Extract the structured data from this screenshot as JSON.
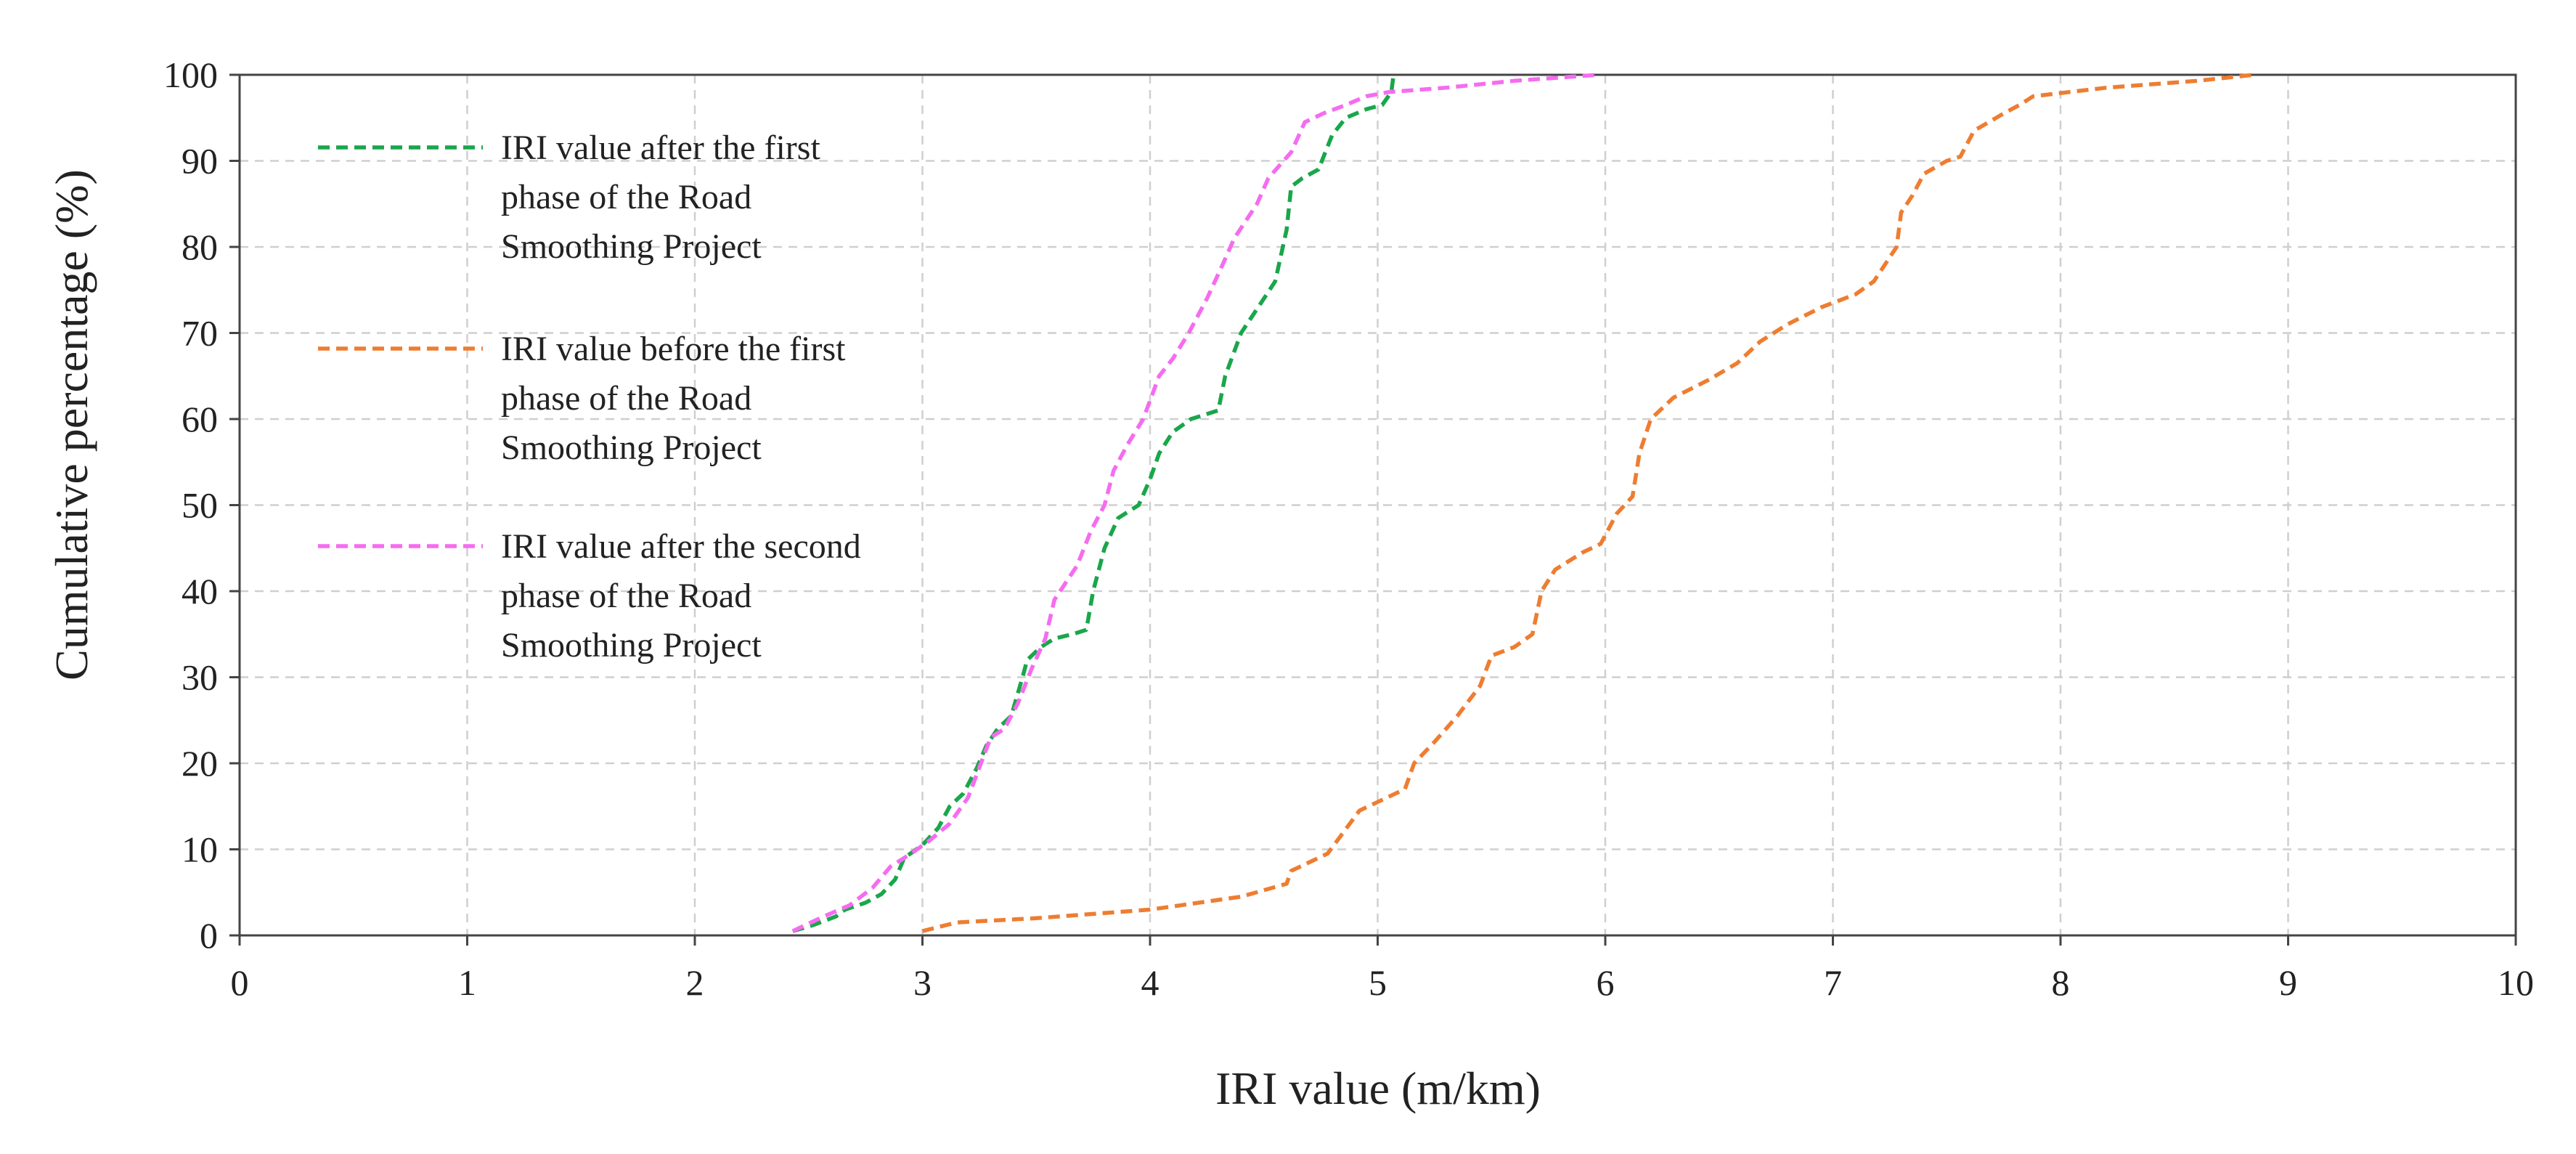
{
  "chart_data": {
    "type": "line",
    "title": "",
    "xlabel": "IRI value (m/km)",
    "ylabel": "Cumulative percentage (%)",
    "xlim": [
      0,
      10
    ],
    "ylim": [
      0,
      100
    ],
    "xticks": [
      "0",
      "1",
      "2",
      "3",
      "4",
      "5",
      "6",
      "7",
      "8",
      "9",
      "10"
    ],
    "yticks": [
      "0",
      "10",
      "20",
      "30",
      "40",
      "50",
      "60",
      "70",
      "80",
      "90",
      "100"
    ],
    "grid": true,
    "legend_position": "top-left",
    "series": [
      {
        "name": "IRI value after the first phase of the Road Smoothing Project",
        "legend_lines": [
          "IRI value after the first",
          "phase of the Road",
          "Smoothing Project"
        ],
        "color": "#1aa64b",
        "x": [
          2.43,
          2.52,
          2.62,
          2.66,
          2.75,
          2.82,
          2.88,
          2.92,
          3.0,
          3.07,
          3.12,
          3.18,
          3.24,
          3.28,
          3.33,
          3.39,
          3.44,
          3.46,
          3.52,
          3.58,
          3.66,
          3.72,
          3.75,
          3.8,
          3.86,
          3.95,
          4.0,
          4.04,
          4.1,
          4.18,
          4.24,
          4.3,
          4.33,
          4.4,
          4.45,
          4.5,
          4.55,
          4.6,
          4.62,
          4.67,
          4.74,
          4.8,
          4.86,
          4.95,
          5.02,
          5.06,
          5.07
        ],
        "y": [
          0.5,
          1.2,
          2.2,
          3.0,
          3.8,
          4.8,
          6.5,
          9.0,
          10.5,
          12.5,
          15.0,
          16.5,
          19.5,
          22.0,
          24.0,
          25.5,
          30.0,
          32.0,
          33.5,
          34.5,
          35.0,
          35.5,
          40.0,
          45.0,
          48.5,
          50.0,
          53.0,
          56.0,
          58.5,
          60.0,
          60.5,
          61.0,
          65.0,
          70.0,
          72.0,
          74.0,
          76.0,
          82.0,
          87.0,
          88.0,
          89.0,
          93.0,
          95.0,
          96.0,
          96.5,
          98.0,
          100.0
        ]
      },
      {
        "name": "IRI value before the first phase of the Road Smoothing Project",
        "legend_lines": [
          "IRI value before the first",
          "phase of the Road",
          "Smoothing Project"
        ],
        "color": "#ee7d31",
        "x": [
          3.0,
          3.15,
          3.5,
          4.0,
          4.4,
          4.6,
          4.62,
          4.7,
          4.78,
          4.85,
          4.92,
          5.0,
          5.12,
          5.16,
          5.25,
          5.35,
          5.45,
          5.5,
          5.6,
          5.68,
          5.72,
          5.78,
          5.9,
          5.98,
          6.05,
          6.12,
          6.15,
          6.2,
          6.3,
          6.45,
          6.58,
          6.68,
          6.8,
          6.95,
          7.1,
          7.18,
          7.28,
          7.3,
          7.35,
          7.4,
          7.5,
          7.56,
          7.62,
          7.75,
          7.82,
          7.88,
          8.2,
          8.6,
          8.85
        ],
        "y": [
          0.5,
          1.5,
          2.0,
          3.0,
          4.5,
          6.0,
          7.5,
          8.5,
          9.5,
          12.0,
          14.5,
          15.5,
          17.0,
          20.0,
          22.5,
          25.5,
          29.0,
          32.5,
          33.5,
          35.0,
          40.0,
          42.5,
          44.5,
          45.5,
          49.0,
          51.0,
          56.0,
          60.0,
          62.5,
          64.5,
          66.5,
          69.0,
          71.0,
          73.0,
          74.5,
          76.0,
          80.0,
          84.0,
          86.0,
          88.5,
          90.0,
          90.5,
          93.5,
          95.5,
          96.5,
          97.5,
          98.5,
          99.3,
          100.0
        ]
      },
      {
        "name": "IRI value after the second phase of the Road Smoothing Project",
        "legend_lines": [
          "IRI value after the second",
          "phase of the Road",
          "Smoothing Project"
        ],
        "color": "#f56cf0",
        "x": [
          2.43,
          2.55,
          2.68,
          2.78,
          2.86,
          2.95,
          3.03,
          3.12,
          3.2,
          3.25,
          3.3,
          3.36,
          3.42,
          3.48,
          3.54,
          3.58,
          3.63,
          3.68,
          3.74,
          3.8,
          3.84,
          3.9,
          3.97,
          4.04,
          4.1,
          4.17,
          4.25,
          4.32,
          4.37,
          4.42,
          4.47,
          4.52,
          4.57,
          4.62,
          4.68,
          4.76,
          4.86,
          4.95,
          5.05,
          5.3,
          5.6,
          5.97
        ],
        "y": [
          0.5,
          2.0,
          3.5,
          5.5,
          8.0,
          9.5,
          11.0,
          13.0,
          16.0,
          19.5,
          23.0,
          24.0,
          27.0,
          31.0,
          34.5,
          39.0,
          41.0,
          43.0,
          47.0,
          50.0,
          54.0,
          57.0,
          60.0,
          65.0,
          67.0,
          70.0,
          74.0,
          78.0,
          81.0,
          83.0,
          85.0,
          88.0,
          89.5,
          91.0,
          94.5,
          95.5,
          96.5,
          97.5,
          98.0,
          98.5,
          99.3,
          100.0
        ]
      }
    ]
  }
}
